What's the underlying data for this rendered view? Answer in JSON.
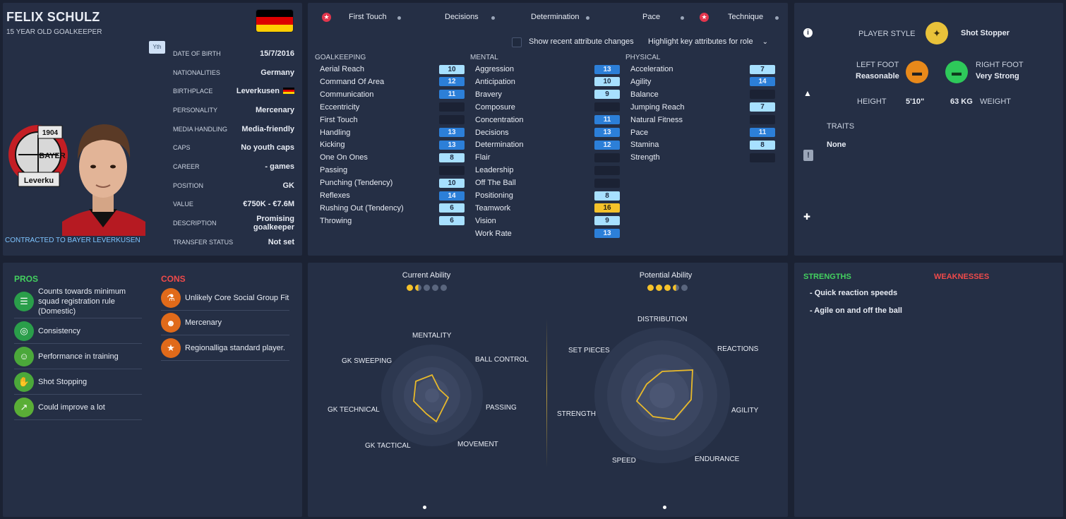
{
  "profile": {
    "name": "FELIX SCHULZ",
    "subtitle": "15 YEAR OLD GOALKEEPER",
    "youth_badge": "Yth",
    "contract": "CONTRACTED TO BAYER LEVERKUSEN",
    "club_badge_text": [
      "1904",
      "BAYER",
      "Leverku"
    ],
    "info": [
      {
        "key": "DATE OF BIRTH",
        "value": "15/7/2016"
      },
      {
        "key": "NATIONALITIES",
        "value": "Germany"
      },
      {
        "key": "BIRTHPLACE",
        "value": "Leverkusen"
      },
      {
        "key": "PERSONALITY",
        "value": "Mercenary"
      },
      {
        "key": "MEDIA HANDLING",
        "value": "Media-friendly"
      },
      {
        "key": "CAPS",
        "value": "No youth caps"
      },
      {
        "key": "CAREER",
        "value": "-  games"
      },
      {
        "key": "POSITION",
        "value": "GK"
      },
      {
        "key": "VALUE",
        "value": "€750K - €7.6M"
      },
      {
        "key": "DESCRIPTION",
        "value": "Promising goalkeeper"
      },
      {
        "key": "TRANSFER STATUS",
        "value": "Not set"
      }
    ],
    "flag_colors": [
      "#000000",
      "#dd0000",
      "#ffce00"
    ]
  },
  "attributes": {
    "tabs": [
      "First Touch",
      "Decisions",
      "Determination",
      "Pace",
      "Technique"
    ],
    "show_changes_label": "Show recent attribute changes",
    "highlight_label": "Highlight key attributes for role",
    "columns": [
      {
        "title": "GOALKEEPING",
        "items": [
          {
            "name": "Aerial Reach",
            "value": "10",
            "tone": "light"
          },
          {
            "name": "Command Of Area",
            "value": "12",
            "tone": "mid"
          },
          {
            "name": "Communication",
            "value": "11",
            "tone": "mid"
          },
          {
            "name": "Eccentricity",
            "value": "",
            "tone": "dark"
          },
          {
            "name": "First Touch",
            "value": "",
            "tone": "dark"
          },
          {
            "name": "Handling",
            "value": "13",
            "tone": "mid"
          },
          {
            "name": "Kicking",
            "value": "13",
            "tone": "mid"
          },
          {
            "name": "One On Ones",
            "value": "8",
            "tone": "light"
          },
          {
            "name": "Passing",
            "value": "",
            "tone": "dark"
          },
          {
            "name": "Punching (Tendency)",
            "value": "10",
            "tone": "light"
          },
          {
            "name": "Reflexes",
            "value": "14",
            "tone": "mid"
          },
          {
            "name": "Rushing Out (Tendency)",
            "value": "6",
            "tone": "light"
          },
          {
            "name": "Throwing",
            "value": "6",
            "tone": "light"
          }
        ]
      },
      {
        "title": "MENTAL",
        "items": [
          {
            "name": "Aggression",
            "value": "13",
            "tone": "mid"
          },
          {
            "name": "Anticipation",
            "value": "10",
            "tone": "light"
          },
          {
            "name": "Bravery",
            "value": "9",
            "tone": "light"
          },
          {
            "name": "Composure",
            "value": "",
            "tone": "dark"
          },
          {
            "name": "Concentration",
            "value": "11",
            "tone": "mid"
          },
          {
            "name": "Decisions",
            "value": "13",
            "tone": "mid"
          },
          {
            "name": "Determination",
            "value": "12",
            "tone": "mid"
          },
          {
            "name": "Flair",
            "value": "",
            "tone": "dark"
          },
          {
            "name": "Leadership",
            "value": "",
            "tone": "dark"
          },
          {
            "name": "Off The Ball",
            "value": "",
            "tone": "dark"
          },
          {
            "name": "Positioning",
            "value": "8",
            "tone": "light"
          },
          {
            "name": "Teamwork",
            "value": "16",
            "tone": "gold"
          },
          {
            "name": "Vision",
            "value": "9",
            "tone": "light"
          },
          {
            "name": "Work Rate",
            "value": "13",
            "tone": "mid"
          }
        ]
      },
      {
        "title": "PHYSICAL",
        "items": [
          {
            "name": "Acceleration",
            "value": "7",
            "tone": "light"
          },
          {
            "name": "Agility",
            "value": "14",
            "tone": "mid"
          },
          {
            "name": "Balance",
            "value": "",
            "tone": "dark"
          },
          {
            "name": "Jumping Reach",
            "value": "7",
            "tone": "light"
          },
          {
            "name": "Natural Fitness",
            "value": "",
            "tone": "dark"
          },
          {
            "name": "Pace",
            "value": "11",
            "tone": "mid"
          },
          {
            "name": "Stamina",
            "value": "8",
            "tone": "light"
          },
          {
            "name": "Strength",
            "value": "",
            "tone": "dark"
          }
        ]
      }
    ]
  },
  "player_style": {
    "style_label": "PLAYER STYLE",
    "style_value": "Shot Stopper",
    "left_foot_label": "LEFT FOOT",
    "left_foot_value": "Reasonable",
    "right_foot_label": "RIGHT FOOT",
    "right_foot_value": "Very Strong",
    "height_label": "HEIGHT",
    "height_value": "5'10\"",
    "weight_value": "63 KG",
    "weight_label": "WEIGHT",
    "traits_label": "TRAITS",
    "traits_value": "None",
    "left_foot_color": "#e8891a",
    "right_foot_color": "#2ec95a"
  },
  "pros_cons": {
    "pros_title": "PROS",
    "cons_title": "CONS",
    "pros": [
      {
        "text": "Counts towards minimum squad registration rule (Domestic)",
        "icon": "registration-icon"
      },
      {
        "text": "Consistency",
        "icon": "target-icon"
      },
      {
        "text": "Performance in training",
        "icon": "training-icon"
      },
      {
        "text": "Shot Stopping",
        "icon": "dive-icon"
      },
      {
        "text": "Could improve a lot",
        "icon": "growth-icon"
      }
    ],
    "cons": [
      {
        "text": "Unlikely Core Social Group Fit",
        "icon": "flask-icon"
      },
      {
        "text": "Mercenary",
        "icon": "head-icon"
      },
      {
        "text": "Regionalliga standard player.",
        "icon": "star-icon"
      }
    ],
    "pros_color": "#43d15f",
    "cons_color": "#f04a4a"
  },
  "ability": {
    "current_title": "Current Ability",
    "current_stars": 1.5,
    "potential_title": "Potential Ability",
    "potential_stars": 3.5,
    "current_radar": {
      "labels": [
        "MENTALITY",
        "BALL CONTROL",
        "PASSING",
        "MOVEMENT",
        "GK TACTICAL",
        "GK TECHNICAL",
        "GK SWEEPING"
      ]
    },
    "potential_radar": {
      "labels": [
        "DISTRIBUTION",
        "REACTIONS",
        "AGILITY",
        "ENDURANCE",
        "SPEED",
        "STRENGTH",
        "SET PIECES"
      ]
    }
  },
  "strengths": {
    "strengths_title": "STRENGTHS",
    "weaknesses_title": "WEAKNESSES",
    "items": [
      "- Quick reaction speeds",
      "- Agile on and off the ball"
    ]
  }
}
